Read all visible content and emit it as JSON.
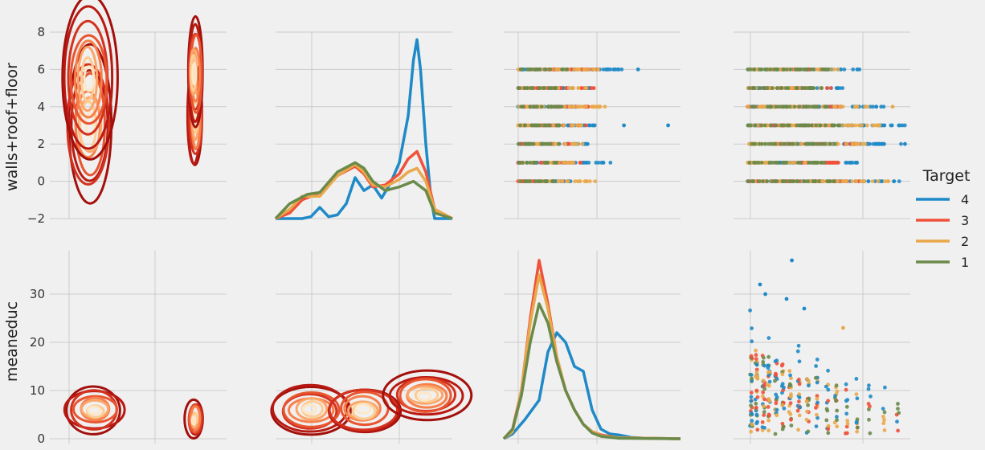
{
  "chart_data": {
    "type": "scatter",
    "layout": "pairplot 2x4",
    "grid": true,
    "legend": {
      "title": "Target",
      "placement": "right",
      "entries": [
        "4",
        "3",
        "2",
        "1"
      ]
    },
    "series": [
      {
        "name": "4",
        "color": "#1f8ac7"
      },
      {
        "name": "3",
        "color": "#f0513a"
      },
      {
        "name": "2",
        "color": "#e9a84a"
      },
      {
        "name": "1",
        "color": "#6a8a4a"
      }
    ],
    "rows": [
      {
        "ylabel": "walls+roof+floor",
        "ylim": [
          -2,
          8
        ],
        "yticks": [
          "8",
          "6",
          "4",
          "2",
          "0",
          "−2"
        ],
        "ytick_values": [
          8,
          6,
          4,
          2,
          0,
          -2
        ]
      },
      {
        "ylabel": "meaneduc",
        "ylim": [
          -1,
          39
        ],
        "yticks": [
          "30",
          "20",
          "10",
          "0"
        ],
        "ytick_values": [
          30,
          20,
          10,
          0
        ]
      }
    ],
    "panels": [
      {
        "row": 0,
        "col": 0,
        "kind": "kde2d",
        "centers": [
          [
            0.22,
            3.0
          ],
          [
            0.22,
            5.5
          ],
          [
            0.82,
            3.5
          ],
          [
            0.82,
            5.8
          ]
        ]
      },
      {
        "row": 0,
        "col": 1,
        "kind": "kde1d",
        "curves": [
          {
            "series": "4",
            "x": [
              0.0,
              0.1,
              0.15,
              0.2,
              0.25,
              0.3,
              0.35,
              0.4,
              0.45,
              0.5,
              0.55,
              0.6,
              0.65,
              0.7,
              0.75,
              0.78,
              0.8,
              0.82,
              0.85,
              0.88,
              0.9,
              1.0
            ],
            "y": [
              -2,
              -2,
              -2,
              -1.9,
              -1.4,
              -1.9,
              -1.8,
              -1.2,
              0.2,
              -0.5,
              -0.2,
              -0.9,
              -0.1,
              1.0,
              3.5,
              6.5,
              7.6,
              6.0,
              2.0,
              -1.0,
              -2,
              -2
            ]
          },
          {
            "series": "3",
            "x": [
              0.0,
              0.08,
              0.15,
              0.25,
              0.35,
              0.45,
              0.5,
              0.55,
              0.62,
              0.7,
              0.75,
              0.8,
              0.85,
              0.9,
              1.0
            ],
            "y": [
              -2,
              -1.7,
              -1.0,
              -0.6,
              0.3,
              0.8,
              0.4,
              -0.3,
              -0.2,
              0.4,
              1.2,
              1.6,
              0.5,
              -1.5,
              -2
            ]
          },
          {
            "series": "2",
            "x": [
              0.0,
              0.08,
              0.15,
              0.25,
              0.35,
              0.45,
              0.5,
              0.55,
              0.62,
              0.7,
              0.75,
              0.8,
              0.85,
              0.9,
              1.0
            ],
            "y": [
              -2,
              -1.5,
              -0.8,
              -0.8,
              0.3,
              0.9,
              0.5,
              -0.2,
              -0.3,
              0.1,
              0.5,
              0.7,
              0.0,
              -1.5,
              -2
            ]
          },
          {
            "series": "1",
            "x": [
              0.0,
              0.08,
              0.18,
              0.25,
              0.35,
              0.45,
              0.5,
              0.55,
              0.62,
              0.7,
              0.78,
              0.85,
              0.9,
              1.0
            ],
            "y": [
              -2,
              -1.2,
              -0.7,
              -0.6,
              0.5,
              1.0,
              0.7,
              0.0,
              -0.5,
              -0.3,
              0.0,
              -0.5,
              -1.7,
              -2
            ]
          }
        ]
      },
      {
        "row": 0,
        "col": 2,
        "kind": "scatter",
        "levels": [
          0,
          1,
          2,
          3,
          4,
          5,
          6
        ],
        "extents": {
          "4": [
            0.4,
            0.62,
            0.5,
            0.52,
            0.42,
            0.5,
            0.7
          ],
          "3": [
            0.35,
            0.45,
            0.38,
            0.48,
            0.5,
            0.55,
            0.55
          ],
          "2": [
            0.52,
            0.45,
            0.45,
            0.45,
            0.58,
            0.48,
            0.55
          ],
          "1": [
            0.3,
            0.3,
            0.32,
            0.32,
            0.34,
            0.34,
            0.36
          ]
        },
        "outliers": [
          {
            "series": "4",
            "x": 0.68,
            "y": 3
          },
          {
            "series": "4",
            "x": 0.93,
            "y": 3
          },
          {
            "series": "4",
            "x": 0.76,
            "y": 6
          }
        ]
      },
      {
        "row": 0,
        "col": 3,
        "kind": "scatter",
        "levels": [
          0,
          1,
          2,
          3,
          4,
          5,
          6
        ],
        "extents": {
          "4": [
            0.95,
            0.7,
            0.95,
            0.97,
            0.85,
            0.62,
            0.72
          ],
          "3": [
            0.72,
            0.6,
            0.72,
            0.62,
            0.62,
            0.58,
            0.5
          ],
          "2": [
            0.9,
            0.52,
            0.75,
            0.85,
            0.78,
            0.5,
            0.6
          ],
          "1": [
            0.6,
            0.52,
            0.6,
            0.6,
            0.55,
            0.5,
            0.55
          ]
        },
        "outliers": [
          {
            "series": "2",
            "x": 0.9,
            "y": 4
          },
          {
            "series": "4",
            "x": 0.97,
            "y": 2
          }
        ]
      },
      {
        "row": 1,
        "col": 0,
        "kind": "kde2d",
        "centers": [
          [
            0.25,
            6.0
          ],
          [
            0.82,
            4.0
          ]
        ]
      },
      {
        "row": 1,
        "col": 1,
        "kind": "kde2d",
        "centers": [
          [
            0.2,
            6.0
          ],
          [
            0.5,
            6.0
          ],
          [
            0.85,
            9.0
          ]
        ]
      },
      {
        "row": 1,
        "col": 2,
        "kind": "kde1d",
        "curves": [
          {
            "series": "4",
            "x": [
              0.0,
              0.05,
              0.12,
              0.2,
              0.25,
              0.3,
              0.35,
              0.4,
              0.45,
              0.5,
              0.55,
              0.6,
              0.65,
              0.72,
              0.8,
              1.0
            ],
            "y": [
              0,
              1,
              4,
              8,
              18,
              22,
              20,
              15,
              14,
              6,
              2,
              1,
              0.8,
              0.3,
              0.1,
              0
            ]
          },
          {
            "series": "3",
            "x": [
              0.0,
              0.05,
              0.1,
              0.15,
              0.2,
              0.25,
              0.3,
              0.35,
              0.4,
              0.45,
              0.5,
              0.55,
              0.65,
              1.0
            ],
            "y": [
              0,
              2,
              10,
              25,
              37,
              28,
              17,
              10,
              6,
              3,
              1.5,
              0.8,
              0.2,
              0
            ]
          },
          {
            "series": "2",
            "x": [
              0.0,
              0.05,
              0.1,
              0.15,
              0.2,
              0.25,
              0.3,
              0.35,
              0.4,
              0.45,
              0.5,
              0.55,
              0.65,
              1.0
            ],
            "y": [
              0,
              1.5,
              10,
              24,
              34,
              27,
              17,
              10,
              6,
              3,
              1.5,
              0.6,
              0.2,
              0
            ]
          },
          {
            "series": "1",
            "x": [
              0.0,
              0.05,
              0.1,
              0.15,
              0.2,
              0.25,
              0.3,
              0.35,
              0.4,
              0.45,
              0.5,
              0.55,
              0.65,
              1.0
            ],
            "y": [
              0,
              2,
              9,
              20,
              28,
              24,
              16,
              10,
              6,
              3,
              1.2,
              0.5,
              0.1,
              0
            ]
          }
        ]
      },
      {
        "row": 1,
        "col": 3,
        "kind": "scatter",
        "cloud": true
      }
    ]
  }
}
